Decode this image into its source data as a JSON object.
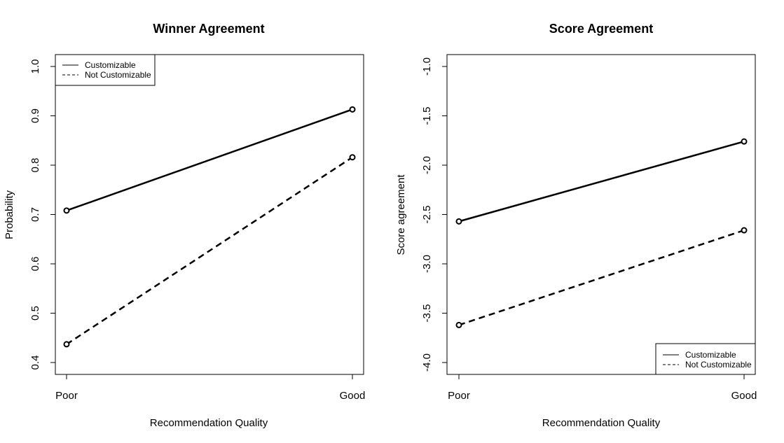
{
  "chart_data": [
    {
      "type": "line",
      "title": "Winner Agreement",
      "xlabel": "Recommendation Quality",
      "ylabel": "Probability",
      "categories": [
        "Poor",
        "Good"
      ],
      "ylim": [
        0.4,
        1.0
      ],
      "yticks": [
        "0.4",
        "0.5",
        "0.6",
        "0.7",
        "0.8",
        "0.9",
        "1.0"
      ],
      "legend_position": "top-left",
      "series": [
        {
          "name": "Customizable",
          "values": [
            0.708,
            0.913
          ],
          "linestyle": "solid"
        },
        {
          "name": "Not Customizable",
          "values": [
            0.437,
            0.816
          ],
          "linestyle": "dashed"
        }
      ]
    },
    {
      "type": "line",
      "title": "Score Agreement",
      "xlabel": "Recommendation Quality",
      "ylabel": "Score agreement",
      "categories": [
        "Poor",
        "Good"
      ],
      "ylim": [
        -4.0,
        -1.0
      ],
      "yticks": [
        "-4.0",
        "-3.5",
        "-3.0",
        "-2.5",
        "-2.0",
        "-1.5",
        "-1.0"
      ],
      "legend_position": "bottom-right",
      "series": [
        {
          "name": "Customizable",
          "values": [
            -2.57,
            -1.76
          ],
          "linestyle": "solid"
        },
        {
          "name": "Not Customizable",
          "values": [
            -3.62,
            -2.66
          ],
          "linestyle": "dashed"
        }
      ]
    }
  ]
}
